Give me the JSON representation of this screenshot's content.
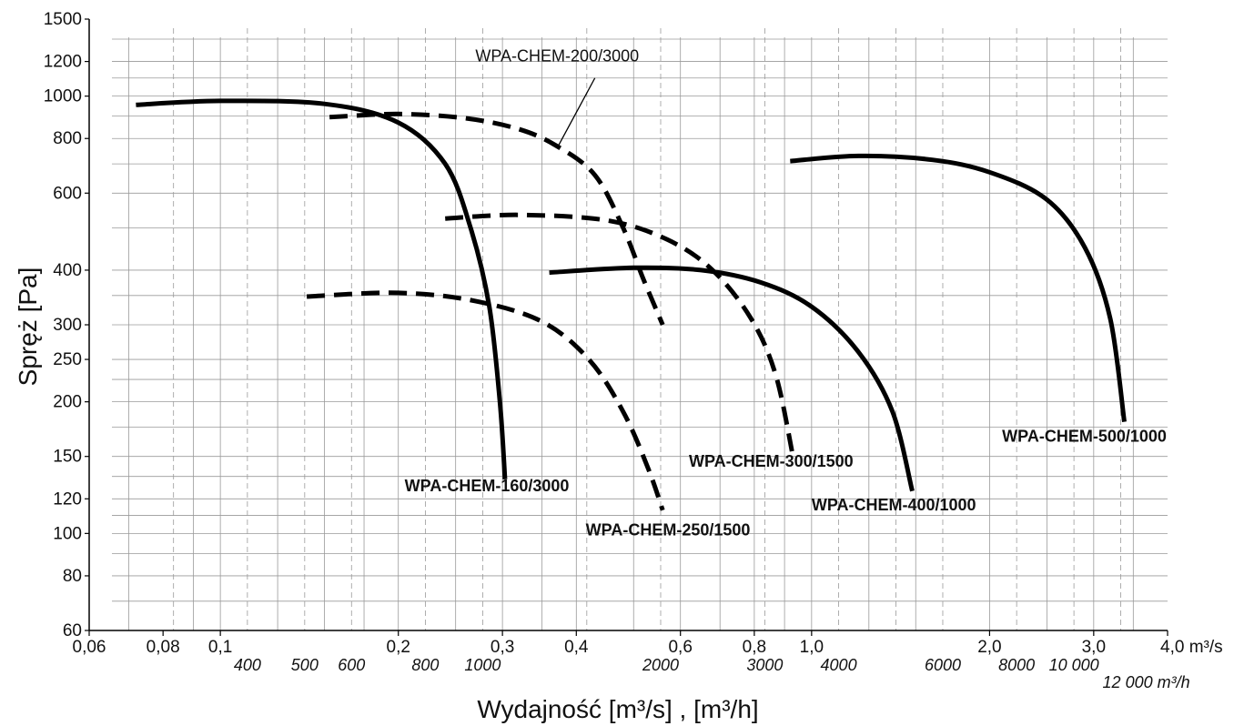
{
  "chart_data": {
    "type": "line",
    "xscale": "log",
    "yscale": "log",
    "xlim": [
      0.06,
      4.0
    ],
    "ylim": [
      60,
      1500
    ],
    "grid": true,
    "ylabel": "Spręż [Pa]",
    "xlabel": "Wydajność [m³/s] , [m³/h]",
    "y_ticks": [
      {
        "value": 1500,
        "label": "1500"
      },
      {
        "value": 1200,
        "label": "1200"
      },
      {
        "value": 1000,
        "label": "1000"
      },
      {
        "value": 800,
        "label": "800"
      },
      {
        "value": 600,
        "label": "600"
      },
      {
        "value": 400,
        "label": "400"
      },
      {
        "value": 300,
        "label": "300"
      },
      {
        "value": 250,
        "label": "250"
      },
      {
        "value": 200,
        "label": "200"
      },
      {
        "value": 150,
        "label": "150"
      },
      {
        "value": 120,
        "label": "120"
      },
      {
        "value": 100,
        "label": "100"
      },
      {
        "value": 80,
        "label": "80"
      },
      {
        "value": 60,
        "label": "60"
      }
    ],
    "x_ticks_m3s": [
      {
        "value": 0.06,
        "label": "0,06"
      },
      {
        "value": 0.08,
        "label": "0,08"
      },
      {
        "value": 0.1,
        "label": "0,1"
      },
      {
        "value": 0.2,
        "label": "0,2"
      },
      {
        "value": 0.3,
        "label": "0,3"
      },
      {
        "value": 0.4,
        "label": "0,4"
      },
      {
        "value": 0.6,
        "label": "0,6"
      },
      {
        "value": 0.8,
        "label": "0,8"
      },
      {
        "value": 1.0,
        "label": "1,0"
      },
      {
        "value": 2.0,
        "label": "2,0"
      },
      {
        "value": 3.0,
        "label": "3,0"
      },
      {
        "value": 4.0,
        "label": "4,0 m³/s"
      }
    ],
    "x_ticks_m3h": [
      {
        "value": 400,
        "label": "400"
      },
      {
        "value": 500,
        "label": "500"
      },
      {
        "value": 600,
        "label": "600"
      },
      {
        "value": 800,
        "label": "800"
      },
      {
        "value": 1000,
        "label": "1000"
      },
      {
        "value": 2000,
        "label": "2000"
      },
      {
        "value": 3000,
        "label": "3000"
      },
      {
        "value": 4000,
        "label": "4000"
      },
      {
        "value": 6000,
        "label": "6000"
      },
      {
        "value": 8000,
        "label": "8000"
      },
      {
        "value": 10000,
        "label": "10 000"
      },
      {
        "value": 12000,
        "label": "12 000 m³/h"
      }
    ],
    "series": [
      {
        "name": "WPA-CHEM-160/3000",
        "style": "solid",
        "points": [
          [
            0.072,
            955
          ],
          [
            0.1,
            975
          ],
          [
            0.15,
            960
          ],
          [
            0.2,
            870
          ],
          [
            0.24,
            700
          ],
          [
            0.265,
            500
          ],
          [
            0.285,
            330
          ],
          [
            0.297,
            200
          ],
          [
            0.303,
            133
          ]
        ]
      },
      {
        "name": "WPA-CHEM-200/3000",
        "style": "dashed",
        "points": [
          [
            0.153,
            895
          ],
          [
            0.2,
            910
          ],
          [
            0.26,
            890
          ],
          [
            0.32,
            840
          ],
          [
            0.37,
            770
          ],
          [
            0.43,
            660
          ],
          [
            0.48,
            500
          ],
          [
            0.52,
            380
          ],
          [
            0.56,
            300
          ]
        ]
      },
      {
        "name": "WPA-CHEM-250/1500",
        "style": "dashed",
        "points": [
          [
            0.14,
            348
          ],
          [
            0.2,
            355
          ],
          [
            0.27,
            340
          ],
          [
            0.35,
            305
          ],
          [
            0.42,
            250
          ],
          [
            0.48,
            190
          ],
          [
            0.53,
            140
          ],
          [
            0.56,
            113
          ]
        ]
      },
      {
        "name": "WPA-CHEM-300/1500",
        "style": "dashed",
        "points": [
          [
            0.24,
            525
          ],
          [
            0.32,
            535
          ],
          [
            0.45,
            520
          ],
          [
            0.57,
            470
          ],
          [
            0.68,
            400
          ],
          [
            0.79,
            310
          ],
          [
            0.87,
            230
          ],
          [
            0.93,
            150
          ]
        ]
      },
      {
        "name": "WPA-CHEM-400/1000",
        "style": "solid",
        "points": [
          [
            0.36,
            395
          ],
          [
            0.5,
            405
          ],
          [
            0.65,
            400
          ],
          [
            0.82,
            375
          ],
          [
            1.0,
            330
          ],
          [
            1.2,
            260
          ],
          [
            1.37,
            190
          ],
          [
            1.48,
            125
          ]
        ]
      },
      {
        "name": "WPA-CHEM-500/1000",
        "style": "solid",
        "points": [
          [
            0.92,
            710
          ],
          [
            1.2,
            730
          ],
          [
            1.6,
            715
          ],
          [
            2.0,
            670
          ],
          [
            2.5,
            580
          ],
          [
            2.9,
            450
          ],
          [
            3.2,
            310
          ],
          [
            3.38,
            180
          ]
        ]
      }
    ],
    "annotations": [
      {
        "text": "WPA-CHEM-160/3000",
        "x": 0.205,
        "y": 125,
        "weight": "bold"
      },
      {
        "text": "WPA-CHEM-200/3000",
        "x": 0.27,
        "y": 1200,
        "weight": "normal"
      },
      {
        "text": "WPA-CHEM-250/1500",
        "x": 0.415,
        "y": 99,
        "weight": "bold"
      },
      {
        "text": "WPA-CHEM-300/1500",
        "x": 0.62,
        "y": 142,
        "weight": "bold"
      },
      {
        "text": "WPA-CHEM-400/1000",
        "x": 1.0,
        "y": 113,
        "weight": "bold"
      },
      {
        "text": "WPA-CHEM-500/1000",
        "x": 2.1,
        "y": 162,
        "weight": "bold"
      }
    ],
    "leader_lines": [
      {
        "from": [
          0.43,
          1100
        ],
        "to": [
          0.373,
          770
        ]
      }
    ]
  }
}
